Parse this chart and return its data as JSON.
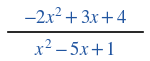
{
  "numerator": "$-2x^2 + 3x + 4$",
  "denominator": "$x^2 - 5x + 1$",
  "line_color": "#000000",
  "text_color": "#2155a0",
  "background_color": "#ffffff",
  "fontsize": 13.5,
  "fig_width": 1.5,
  "fig_height": 0.61
}
